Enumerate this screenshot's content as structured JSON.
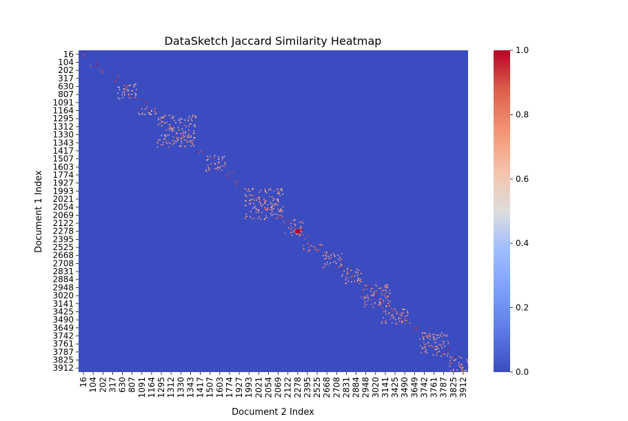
{
  "chart_data": {
    "type": "heatmap",
    "title": "DataSketch Jaccard Similarity Heatmap",
    "xlabel": "Document 2 Index",
    "ylabel": "Document 1 Index",
    "x_ticks": [
      "16",
      "104",
      "202",
      "317",
      "630",
      "807",
      "1091",
      "1164",
      "1295",
      "1312",
      "1330",
      "1343",
      "1417",
      "1507",
      "1603",
      "1774",
      "1927",
      "1993",
      "2021",
      "2054",
      "2069",
      "2122",
      "2278",
      "2395",
      "2525",
      "2668",
      "2708",
      "2831",
      "2884",
      "2948",
      "3020",
      "3141",
      "3425",
      "3490",
      "3649",
      "3742",
      "3761",
      "3787",
      "3825",
      "3912"
    ],
    "y_ticks": [
      "16",
      "104",
      "202",
      "317",
      "630",
      "807",
      "1091",
      "1164",
      "1295",
      "1312",
      "1330",
      "1343",
      "1417",
      "1507",
      "1603",
      "1774",
      "1927",
      "1993",
      "2021",
      "2054",
      "2069",
      "2122",
      "2278",
      "2395",
      "2525",
      "2668",
      "2708",
      "2831",
      "2884",
      "2948",
      "3020",
      "3141",
      "3425",
      "3490",
      "3649",
      "3742",
      "3761",
      "3787",
      "3825",
      "3912"
    ],
    "colorbar": {
      "colormap": "coolwarm",
      "range": [
        0.0,
        1.0
      ],
      "ticks": [
        "0.0",
        "0.2",
        "0.4",
        "0.6",
        "0.8",
        "1.0"
      ],
      "low_color": "#3b4cc0",
      "mid_color": "#dddddd",
      "high_color": "#b40426"
    },
    "background_value": 0.0,
    "clusters": [
      {
        "row_range": [
          "630",
          "807"
        ],
        "col_range": [
          "630",
          "807"
        ],
        "value": 0.75
      },
      {
        "row_range": [
          "1164",
          "1164"
        ],
        "col_range": [
          "1091",
          "1164"
        ],
        "value": 0.75
      },
      {
        "row_range": [
          "1295",
          "1343"
        ],
        "col_range": [
          "1295",
          "1343"
        ],
        "value": 0.8
      },
      {
        "row_range": [
          "1507",
          "1603"
        ],
        "col_range": [
          "1507",
          "1603"
        ],
        "value": 0.8
      },
      {
        "row_range": [
          "1993",
          "2069"
        ],
        "col_range": [
          "1993",
          "2069"
        ],
        "value": 0.8
      },
      {
        "row_range": [
          "2122",
          "2278"
        ],
        "col_range": [
          "2122",
          "2278"
        ],
        "value": 0.85
      },
      {
        "row_range": [
          "2278",
          "2278"
        ],
        "col_range": [
          "2278",
          "2278"
        ],
        "value": 1.0
      },
      {
        "row_range": [
          "2525",
          "2525"
        ],
        "col_range": [
          "2395",
          "2525"
        ],
        "value": 0.9
      },
      {
        "row_range": [
          "2668",
          "2708"
        ],
        "col_range": [
          "2668",
          "2708"
        ],
        "value": 0.8
      },
      {
        "row_range": [
          "2831",
          "2884"
        ],
        "col_range": [
          "2831",
          "2884"
        ],
        "value": 0.8
      },
      {
        "row_range": [
          "2948",
          "3141"
        ],
        "col_range": [
          "2948",
          "3141"
        ],
        "value": 0.85
      },
      {
        "row_range": [
          "3425",
          "3490"
        ],
        "col_range": [
          "3141",
          "3490"
        ],
        "value": 0.85
      },
      {
        "row_range": [
          "3742",
          "3787"
        ],
        "col_range": [
          "3742",
          "3787"
        ],
        "value": 0.8
      },
      {
        "row_range": [
          "3825",
          "3912"
        ],
        "col_range": [
          "3825",
          "3912"
        ],
        "value": 0.8
      }
    ]
  }
}
